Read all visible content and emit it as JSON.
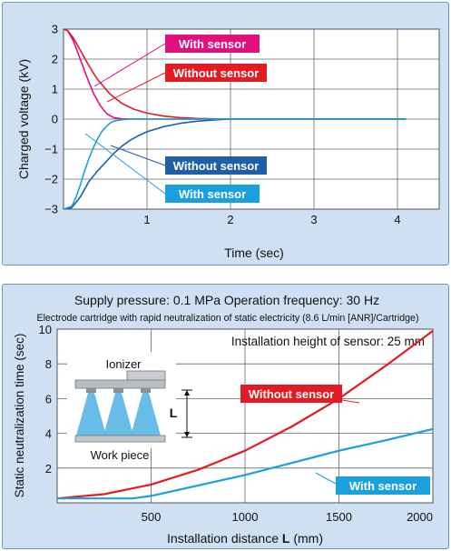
{
  "chart_data": [
    {
      "type": "line",
      "xlabel": "Time (sec)",
      "ylabel": "Charged voltage (kV)",
      "xlim": [
        0,
        4.5
      ],
      "ylim": [
        -3,
        3
      ],
      "x_ticks": [
        1,
        2,
        3,
        4
      ],
      "y_ticks": [
        3,
        2,
        1,
        0,
        -1,
        -2,
        -3
      ],
      "y_tick_labels": [
        "3",
        "2",
        "1",
        "0",
        "−1",
        "−2",
        "−3"
      ],
      "grid": true,
      "series": [
        {
          "name": "With sensor",
          "color": "#e0107e",
          "x": [
            0,
            0.05,
            0.12,
            0.2,
            0.28,
            0.36,
            0.44,
            0.52,
            0.6,
            0.7,
            0.8,
            1.0,
            4.1
          ],
          "y": [
            3,
            2.95,
            2.6,
            2.0,
            1.4,
            0.85,
            0.45,
            0.18,
            0.05,
            0.01,
            0,
            0,
            0
          ]
        },
        {
          "name": "Without sensor",
          "color": "#e31b23",
          "x": [
            0,
            0.05,
            0.12,
            0.2,
            0.3,
            0.4,
            0.55,
            0.7,
            0.85,
            1.0,
            1.2,
            1.4,
            1.6,
            1.8,
            2.0,
            4.1
          ],
          "y": [
            3,
            2.95,
            2.7,
            2.3,
            1.8,
            1.35,
            0.85,
            0.52,
            0.32,
            0.2,
            0.1,
            0.05,
            0.02,
            0.01,
            0,
            0
          ]
        },
        {
          "name": "Without sensor",
          "color": "#1f5fa8",
          "x": [
            0,
            0.1,
            0.2,
            0.3,
            0.4,
            0.5,
            0.6,
            0.7,
            0.8,
            0.9,
            1.0,
            1.2,
            1.4,
            1.6,
            1.8,
            2.0,
            4.1
          ],
          "y": [
            -3,
            -2.95,
            -2.6,
            -2.1,
            -1.75,
            -1.45,
            -1.15,
            -0.9,
            -0.7,
            -0.55,
            -0.42,
            -0.25,
            -0.14,
            -0.07,
            -0.03,
            0,
            0
          ]
        },
        {
          "name": "With sensor",
          "color": "#1aa0dc",
          "x": [
            0,
            0.1,
            0.15,
            0.2,
            0.25,
            0.3,
            0.35,
            0.4,
            0.45,
            0.5,
            0.55,
            0.6,
            0.7,
            0.8,
            4.1
          ],
          "y": [
            -3,
            -2.9,
            -2.6,
            -2.2,
            -1.75,
            -1.35,
            -1.0,
            -0.7,
            -0.45,
            -0.28,
            -0.15,
            -0.07,
            -0.02,
            0,
            0
          ]
        }
      ]
    },
    {
      "type": "line",
      "title": "Supply pressure: 0.1 MPa Operation frequency: 30 Hz",
      "subtitle": "Electrode cartridge with rapid neutralization of static electricity (8.6 L/min [ANR]/Cartridge)",
      "annotation": "Installation height of sensor: 25 mm",
      "xlabel_prefix": "Installation distance ",
      "xlabel_var": "L",
      "xlabel_unit": " (mm)",
      "ylabel": "Static neutralization time (sec)",
      "xlim": [
        0,
        2000
      ],
      "ylim": [
        0,
        10
      ],
      "x_ticks": [
        500,
        1000,
        1500,
        2000
      ],
      "y_ticks": [
        0,
        2,
        4,
        6,
        8,
        10
      ],
      "grid": true,
      "series": [
        {
          "name": "Without sensor",
          "color": "#e31b23",
          "x": [
            0,
            250,
            500,
            750,
            1000,
            1250,
            1500,
            1750,
            2000
          ],
          "y": [
            0.25,
            0.5,
            1.05,
            1.9,
            3.0,
            4.4,
            6.0,
            7.9,
            9.9
          ]
        },
        {
          "name": "With sensor",
          "color": "#1aa0dc",
          "x": [
            0,
            400,
            500,
            750,
            1000,
            1250,
            1500,
            1750,
            2000
          ],
          "y": [
            0.25,
            0.25,
            0.4,
            1.0,
            1.6,
            2.3,
            3.0,
            3.6,
            4.25
          ]
        }
      ]
    }
  ],
  "diagram": {
    "ionizer_label": "Ionizer",
    "workpiece_label": "Work piece",
    "distance_label": "L"
  }
}
